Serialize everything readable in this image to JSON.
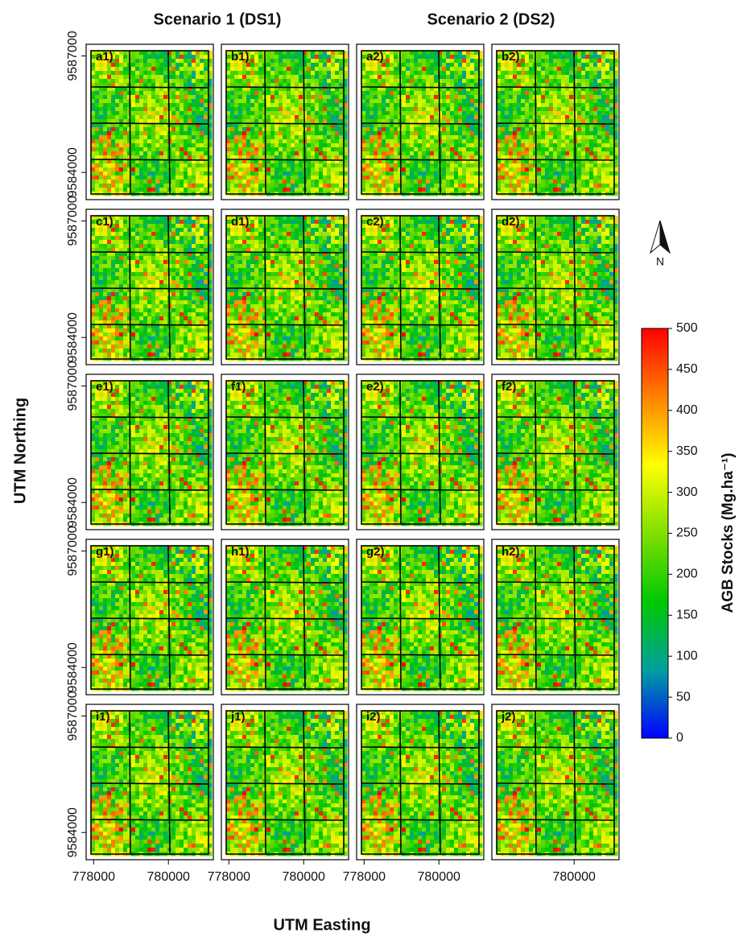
{
  "column_titles": [
    "Scenario 1 (DS1)",
    "Scenario 2 (DS2)"
  ],
  "panels": [
    [
      "a1)",
      "b1)",
      "a2)",
      "b2)"
    ],
    [
      "c1)",
      "d1)",
      "c2)",
      "d2)"
    ],
    [
      "e1)",
      "f1)",
      "e2)",
      "f2)"
    ],
    [
      "g1)",
      "h1)",
      "g2)",
      "h2)"
    ],
    [
      "i1)",
      "j1)",
      "i2)",
      "j2)"
    ]
  ],
  "x_axis": {
    "title": "UTM Easting",
    "xlim": [
      777800,
      781200
    ],
    "xticks": [
      [
        778000,
        780000
      ],
      [
        778000,
        780000
      ],
      [
        778000,
        780000
      ],
      [
        780000
      ]
    ]
  },
  "y_axis": {
    "title": "UTM Northing",
    "ylim": [
      9583300,
      9587300
    ],
    "yticks": [
      9587000,
      9584000
    ]
  },
  "colorbar": {
    "title": "AGB Stocks (Mg.ha⁻¹)",
    "lim": [
      0,
      500
    ],
    "ticks": [
      0,
      50,
      100,
      150,
      200,
      250,
      300,
      350,
      400,
      450,
      500
    ],
    "colors": [
      "#0000ff",
      "#00a0a0",
      "#00c800",
      "#80e000",
      "#ffff00",
      "#ff8000",
      "#ff0000"
    ]
  },
  "north_label": "N"
}
